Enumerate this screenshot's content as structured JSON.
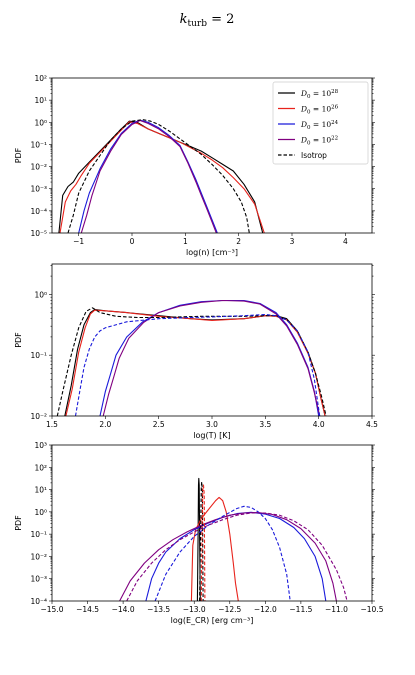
{
  "figure": {
    "title_base": "k",
    "title_sub": "turb",
    "title_rest": " = 2"
  },
  "legend": [
    {
      "name": "D₀ = 10²⁸",
      "base": "D",
      "sub": "0",
      "mid": " = 10",
      "exp": "28",
      "color": "#000000",
      "dash": false
    },
    {
      "name": "D₀ = 10²⁶",
      "base": "D",
      "sub": "0",
      "mid": " = 10",
      "exp": "26",
      "color": "#e8231c",
      "dash": false
    },
    {
      "name": "D₀ = 10²⁴",
      "base": "D",
      "sub": "0",
      "mid": " = 10",
      "exp": "24",
      "color": "#1a1adb",
      "dash": false
    },
    {
      "name": "D₀ = 10²²",
      "base": "D",
      "sub": "0",
      "mid": " = 10",
      "exp": "22",
      "color": "#800080",
      "dash": false
    },
    {
      "name": "Isotrop",
      "color": "#000000",
      "dash": true
    }
  ],
  "chart_data": [
    {
      "type": "line",
      "xlabel": "log(n) [cm⁻³]",
      "ylabel": "PDF",
      "xlim": [
        -1.5,
        4.5
      ],
      "ylim_log10": [
        -5,
        2
      ],
      "xticks": [
        -1,
        0,
        1,
        2,
        3,
        4
      ],
      "yticks_log10": [
        -5,
        -4,
        -3,
        -2,
        -1,
        0,
        1,
        2
      ],
      "legend_position": "top-right",
      "series": [
        {
          "name": "D₀ = 10²⁸",
          "color": "#000000",
          "dash": false,
          "x": [
            -1.37,
            -1.3,
            -1.2,
            -1.1,
            -1.0,
            -0.8,
            -0.6,
            -0.4,
            -0.2,
            -0.05,
            0.1,
            0.3,
            0.5,
            0.7,
            0.9,
            1.1,
            1.3,
            1.5,
            1.7,
            1.9,
            2.1,
            2.3,
            2.45
          ],
          "log10y": [
            -5.0,
            -3.3,
            -2.9,
            -2.7,
            -2.3,
            -1.8,
            -1.3,
            -0.8,
            -0.3,
            0.05,
            0.0,
            -0.3,
            -0.5,
            -0.7,
            -0.9,
            -1.1,
            -1.3,
            -1.6,
            -1.9,
            -2.2,
            -2.8,
            -3.6,
            -5.0
          ]
        },
        {
          "name": "D₀ = 10²⁶",
          "color": "#e8231c",
          "dash": false,
          "x": [
            -1.35,
            -1.25,
            -1.15,
            -1.05,
            -0.95,
            -0.8,
            -0.6,
            -0.4,
            -0.2,
            -0.05,
            0.1,
            0.3,
            0.5,
            0.7,
            0.9,
            1.1,
            1.3,
            1.5,
            1.7,
            1.9,
            2.1,
            2.3,
            2.48
          ],
          "log10y": [
            -5.0,
            -3.6,
            -3.1,
            -2.8,
            -2.4,
            -1.85,
            -1.35,
            -0.85,
            -0.35,
            0.02,
            -0.05,
            -0.3,
            -0.5,
            -0.7,
            -0.9,
            -1.15,
            -1.4,
            -1.7,
            -2.05,
            -2.5,
            -3.0,
            -3.7,
            -5.0
          ]
        },
        {
          "name": "D₀ = 10²⁴",
          "color": "#1a1adb",
          "dash": false,
          "x": [
            -1.0,
            -0.9,
            -0.8,
            -0.6,
            -0.4,
            -0.2,
            0.0,
            0.15,
            0.3,
            0.5,
            0.7,
            0.9,
            1.05,
            1.2,
            1.3,
            1.4,
            1.5,
            1.6
          ],
          "log10y": [
            -5.0,
            -4.0,
            -3.2,
            -2.1,
            -1.2,
            -0.5,
            -0.05,
            0.1,
            0.0,
            -0.25,
            -0.6,
            -1.05,
            -1.8,
            -2.6,
            -3.2,
            -3.8,
            -4.4,
            -5.0
          ]
        },
        {
          "name": "D₀ = 10²²",
          "color": "#800080",
          "dash": false,
          "x": [
            -0.95,
            -0.85,
            -0.75,
            -0.6,
            -0.4,
            -0.2,
            0.0,
            0.15,
            0.3,
            0.5,
            0.7,
            0.9,
            1.05,
            1.2,
            1.3,
            1.4,
            1.5,
            1.58
          ],
          "log10y": [
            -5.0,
            -4.2,
            -3.3,
            -2.2,
            -1.3,
            -0.55,
            -0.1,
            0.08,
            -0.05,
            -0.3,
            -0.65,
            -1.1,
            -1.85,
            -2.7,
            -3.3,
            -3.9,
            -4.5,
            -5.0
          ]
        },
        {
          "name": "Isotrop",
          "color": "#000000",
          "dash": true,
          "x": [
            -1.2,
            -1.1,
            -1.0,
            -0.8,
            -0.6,
            -0.4,
            -0.2,
            0.0,
            0.2,
            0.35,
            0.5,
            0.7,
            0.9,
            1.1,
            1.3,
            1.5,
            1.7,
            1.9,
            2.05,
            2.15,
            2.2
          ],
          "log10y": [
            -5.0,
            -4.2,
            -3.2,
            -2.2,
            -1.5,
            -0.8,
            -0.3,
            0.05,
            0.12,
            0.05,
            -0.1,
            -0.4,
            -0.75,
            -1.1,
            -1.45,
            -1.9,
            -2.4,
            -3.0,
            -3.6,
            -4.3,
            -5.0
          ]
        }
      ]
    },
    {
      "type": "line",
      "xlabel": "log(T) [K]",
      "ylabel": "PDF",
      "xlim": [
        1.5,
        4.5
      ],
      "ylim_log10": [
        -2,
        0.5
      ],
      "xticks": [
        1.5,
        2.0,
        2.5,
        3.0,
        3.5,
        4.0,
        4.5
      ],
      "yticks_log10": [
        -2,
        -1,
        0
      ],
      "series": [
        {
          "name": "D₀ = 10²⁸",
          "color": "#000000",
          "dash": false,
          "x": [
            1.62,
            1.68,
            1.74,
            1.8,
            1.86,
            1.9,
            2.0,
            2.2,
            2.5,
            2.8,
            3.0,
            3.3,
            3.5,
            3.6,
            3.7,
            3.8,
            3.9,
            3.97,
            4.02,
            4.06
          ],
          "log10y": [
            -2.0,
            -1.5,
            -0.9,
            -0.5,
            -0.3,
            -0.25,
            -0.27,
            -0.3,
            -0.35,
            -0.4,
            -0.42,
            -0.4,
            -0.35,
            -0.35,
            -0.4,
            -0.6,
            -0.95,
            -1.3,
            -1.7,
            -2.0
          ]
        },
        {
          "name": "D₀ = 10²⁶",
          "color": "#e8231c",
          "dash": false,
          "x": [
            1.63,
            1.69,
            1.75,
            1.81,
            1.86,
            1.9,
            2.0,
            2.2,
            2.5,
            2.8,
            3.0,
            3.3,
            3.5,
            3.6,
            3.7,
            3.8,
            3.9,
            3.97,
            4.02,
            4.06
          ],
          "log10y": [
            -2.0,
            -1.55,
            -0.95,
            -0.55,
            -0.32,
            -0.26,
            -0.27,
            -0.3,
            -0.36,
            -0.4,
            -0.43,
            -0.4,
            -0.35,
            -0.36,
            -0.42,
            -0.62,
            -0.97,
            -1.3,
            -1.7,
            -2.0
          ]
        },
        {
          "name": "D₀ = 10²⁴",
          "color": "#1a1adb",
          "dash": false,
          "x": [
            1.95,
            2.0,
            2.05,
            2.1,
            2.2,
            2.35,
            2.5,
            2.7,
            2.9,
            3.1,
            3.3,
            3.45,
            3.6,
            3.7,
            3.8,
            3.9,
            3.96,
            4.0
          ],
          "log10y": [
            -2.0,
            -1.6,
            -1.3,
            -1.0,
            -0.7,
            -0.45,
            -0.3,
            -0.18,
            -0.12,
            -0.1,
            -0.1,
            -0.15,
            -0.3,
            -0.5,
            -0.8,
            -1.2,
            -1.6,
            -2.0
          ]
        },
        {
          "name": "D₀ = 10²²",
          "color": "#800080",
          "dash": false,
          "x": [
            1.98,
            2.03,
            2.08,
            2.13,
            2.22,
            2.36,
            2.5,
            2.7,
            2.9,
            3.1,
            3.3,
            3.45,
            3.6,
            3.7,
            3.8,
            3.9,
            3.96,
            4.01
          ],
          "log10y": [
            -2.0,
            -1.65,
            -1.35,
            -1.05,
            -0.72,
            -0.46,
            -0.3,
            -0.19,
            -0.13,
            -0.1,
            -0.11,
            -0.16,
            -0.32,
            -0.52,
            -0.82,
            -1.22,
            -1.62,
            -2.0
          ]
        },
        {
          "name": "Isotrop",
          "color": "#000000",
          "dash": true,
          "x": [
            1.55,
            1.6,
            1.68,
            1.75,
            1.82,
            1.88,
            1.95,
            2.1,
            2.3,
            2.5,
            2.7,
            2.9,
            3.1,
            3.3,
            3.5,
            3.6,
            3.7,
            3.8,
            3.9,
            3.97,
            4.03,
            4.07
          ],
          "log10y": [
            -2.0,
            -1.6,
            -1.0,
            -0.55,
            -0.28,
            -0.22,
            -0.3,
            -0.36,
            -0.38,
            -0.38,
            -0.37,
            -0.36,
            -0.36,
            -0.36,
            -0.35,
            -0.35,
            -0.42,
            -0.6,
            -0.95,
            -1.3,
            -1.7,
            -2.0
          ]
        },
        {
          "name": "",
          "color": "#1a1adb",
          "dash": true,
          "x": [
            1.72,
            1.76,
            1.8,
            1.85,
            1.9,
            1.95,
            2.0,
            2.2,
            2.5,
            2.8,
            3.0,
            3.3,
            3.5,
            3.6,
            3.7,
            3.8,
            3.9,
            3.96,
            4.01
          ],
          "log10y": [
            -2.0,
            -1.6,
            -1.2,
            -0.9,
            -0.7,
            -0.6,
            -0.55,
            -0.45,
            -0.4,
            -0.38,
            -0.37,
            -0.35,
            -0.33,
            -0.35,
            -0.42,
            -0.6,
            -0.95,
            -1.4,
            -2.0
          ]
        }
      ]
    },
    {
      "type": "line",
      "xlabel": "log(E_CR) [erg cm⁻³]",
      "ylabel": "PDF",
      "xlim": [
        -15.0,
        -10.5
      ],
      "ylim_log10": [
        -4,
        3
      ],
      "xticks": [
        -15.0,
        -14.5,
        -14.0,
        -13.5,
        -13.0,
        -12.5,
        -12.0,
        -11.5,
        -11.0,
        -10.5
      ],
      "yticks_log10": [
        -4,
        -3,
        -2,
        -1,
        0,
        1,
        2,
        3
      ],
      "series": [
        {
          "name": "D₀ = 10²⁸",
          "color": "#000000",
          "dash": false,
          "x": [
            -12.955,
            -12.945,
            -12.94,
            -12.935,
            -12.93,
            -12.925,
            -12.915
          ],
          "log10y": [
            -4.0,
            -1.0,
            1.2,
            1.5,
            1.2,
            -1.0,
            -4.0
          ]
        },
        {
          "name": "D₀ = 10²⁶",
          "color": "#e8231c",
          "dash": false,
          "x": [
            -13.04,
            -13.02,
            -12.98,
            -12.9,
            -12.8,
            -12.7,
            -12.65,
            -12.6,
            -12.55,
            -12.5,
            -12.45,
            -12.42,
            -12.38
          ],
          "log10y": [
            -4.0,
            -1.5,
            -0.8,
            -0.3,
            0.1,
            0.5,
            0.65,
            0.5,
            0.0,
            -1.0,
            -2.3,
            -3.2,
            -4.0
          ]
        },
        {
          "name": "D₀ = 10²⁴",
          "color": "#1a1adb",
          "dash": false,
          "x": [
            -13.68,
            -13.6,
            -13.5,
            -13.4,
            -13.2,
            -13.0,
            -12.8,
            -12.6,
            -12.4,
            -12.2,
            -12.0,
            -11.8,
            -11.6,
            -11.45,
            -11.3,
            -11.2,
            -11.15
          ],
          "log10y": [
            -4.0,
            -3.0,
            -2.3,
            -1.8,
            -1.2,
            -0.8,
            -0.5,
            -0.25,
            -0.08,
            -0.02,
            -0.1,
            -0.3,
            -0.7,
            -1.2,
            -2.0,
            -3.0,
            -4.0
          ]
        },
        {
          "name": "D₀ = 10²²",
          "color": "#800080",
          "dash": false,
          "x": [
            -14.05,
            -13.9,
            -13.7,
            -13.5,
            -13.3,
            -13.1,
            -12.9,
            -12.7,
            -12.5,
            -12.3,
            -12.1,
            -11.9,
            -11.7,
            -11.5,
            -11.3,
            -11.15,
            -11.05,
            -11.0
          ],
          "log10y": [
            -4.0,
            -3.1,
            -2.3,
            -1.7,
            -1.25,
            -0.9,
            -0.6,
            -0.35,
            -0.15,
            -0.05,
            -0.03,
            -0.12,
            -0.35,
            -0.75,
            -1.4,
            -2.2,
            -3.2,
            -4.0
          ]
        },
        {
          "name": "Isotrop",
          "color": "#000000",
          "dash": true,
          "x": [
            -12.925,
            -12.91,
            -12.9,
            -12.895,
            -12.885,
            -12.875
          ],
          "log10y": [
            -4.0,
            -1.0,
            1.1,
            1.35,
            1.0,
            -4.0
          ]
        },
        {
          "name": "",
          "color": "#e8231c",
          "dash": true,
          "x": [
            -12.9,
            -12.89,
            -12.88,
            -12.87,
            -12.86,
            -12.85
          ],
          "log10y": [
            -4.0,
            -1.0,
            1.0,
            1.2,
            0.8,
            -4.0
          ]
        },
        {
          "name": "",
          "color": "#1a1adb",
          "dash": true,
          "x": [
            -13.55,
            -13.4,
            -13.2,
            -13.0,
            -12.8,
            -12.6,
            -12.4,
            -12.3,
            -12.2,
            -12.1,
            -12.0,
            -11.9,
            -11.8,
            -11.7,
            -11.65
          ],
          "log10y": [
            -4.0,
            -2.8,
            -1.8,
            -1.1,
            -0.6,
            -0.2,
            0.15,
            0.25,
            0.2,
            0.0,
            -0.3,
            -0.8,
            -1.6,
            -2.8,
            -4.0
          ]
        },
        {
          "name": "",
          "color": "#800080",
          "dash": true,
          "x": [
            -13.95,
            -13.8,
            -13.6,
            -13.4,
            -13.2,
            -13.0,
            -12.8,
            -12.6,
            -12.4,
            -12.2,
            -12.0,
            -11.8,
            -11.6,
            -11.4,
            -11.2,
            -11.0,
            -10.9,
            -10.85
          ],
          "log10y": [
            -4.0,
            -3.1,
            -2.3,
            -1.7,
            -1.25,
            -0.9,
            -0.6,
            -0.35,
            -0.15,
            -0.05,
            -0.05,
            -0.15,
            -0.4,
            -0.8,
            -1.5,
            -2.6,
            -3.4,
            -4.0
          ]
        }
      ]
    }
  ]
}
